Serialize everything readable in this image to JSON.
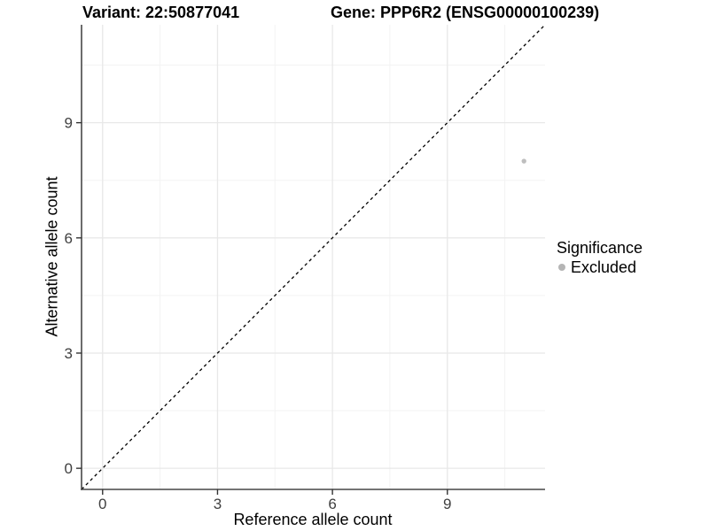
{
  "chart_data": {
    "type": "scatter",
    "title_left": "Variant: 22:50877041",
    "title_right": "Gene: PPP6R2 (ENSG00000100239)",
    "xlabel": "Reference allele count",
    "ylabel": "Alternative allele count",
    "xlim": [
      -0.55,
      11.55
    ],
    "ylim": [
      -0.55,
      11.55
    ],
    "xticks": [
      0,
      3,
      6,
      9
    ],
    "yticks": [
      0,
      3,
      6,
      9
    ],
    "minor_xticks": [
      1.5,
      4.5,
      7.5,
      10.5
    ],
    "minor_yticks": [
      1.5,
      4.5,
      7.5,
      10.5
    ],
    "grid": true,
    "identity_line": {
      "style": "dashed",
      "from": [
        -0.55,
        -0.55
      ],
      "to": [
        11.55,
        11.55
      ]
    },
    "series": [
      {
        "name": "Excluded",
        "color": "#bebebe",
        "points": [
          [
            11,
            8
          ]
        ]
      }
    ],
    "legend": {
      "title": "Significance",
      "position": "right",
      "entries": [
        {
          "label": "Excluded",
          "color": "#b5b5b5"
        }
      ]
    }
  },
  "colors": {
    "background": "#ffffff",
    "grid_major": "#e8e8e8",
    "grid_minor": "#f3f3f3",
    "axis_line": "#474747",
    "tick_mark": "#333333",
    "tick_text": "#404040",
    "identity_line": "#000000",
    "point": "#bebebe"
  }
}
